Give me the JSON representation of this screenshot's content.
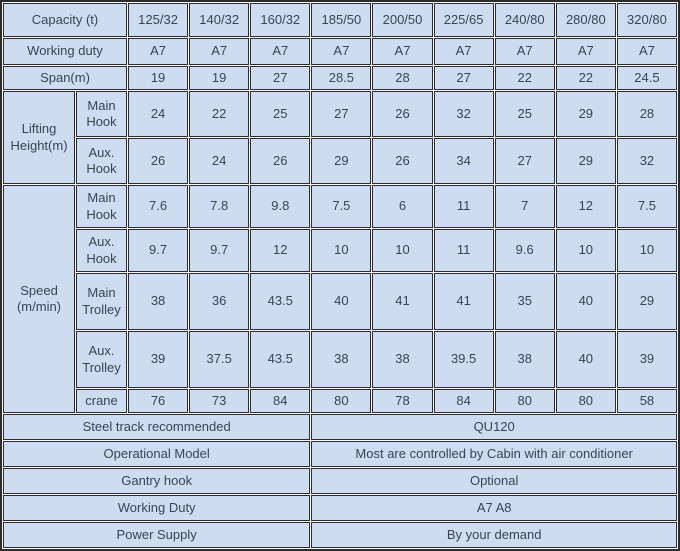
{
  "colors": {
    "cell_background": "#cddcf1",
    "border": "#2d2d2d",
    "text": "#3a4452",
    "cell_gap": "#f7f9fd"
  },
  "table": {
    "capacity": {
      "label": "Capacity (t)",
      "values": [
        "125/32",
        "140/32",
        "160/32",
        "185/50",
        "200/50",
        "225/65",
        "240/80",
        "280/80",
        "320/80"
      ]
    },
    "working_duty": {
      "label": "Working duty",
      "values": [
        "A7",
        "A7",
        "A7",
        "A7",
        "A7",
        "A7",
        "A7",
        "A7",
        "A7"
      ]
    },
    "span": {
      "label": "Span(m)",
      "values": [
        "19",
        "19",
        "27",
        "28.5",
        "28",
        "27",
        "22",
        "22",
        "24.5"
      ]
    },
    "lifting_height": {
      "label": "Lifting Height(m)",
      "main_hook": {
        "label": "Main Hook",
        "values": [
          "24",
          "22",
          "25",
          "27",
          "26",
          "32",
          "25",
          "29",
          "28"
        ]
      },
      "aux_hook": {
        "label": "Aux. Hook",
        "values": [
          "26",
          "24",
          "26",
          "29",
          "26",
          "34",
          "27",
          "29",
          "32"
        ]
      }
    },
    "speed": {
      "label": "Speed (m/min)",
      "main_hook": {
        "label": "Main Hook",
        "values": [
          "7.6",
          "7.8",
          "9.8",
          "7.5",
          "6",
          "11",
          "7",
          "12",
          "7.5"
        ]
      },
      "aux_hook": {
        "label": "Aux. Hook",
        "values": [
          "9.7",
          "9.7",
          "12",
          "10",
          "10",
          "11",
          "9.6",
          "10",
          "10"
        ]
      },
      "main_trolley": {
        "label": "Main Trolley",
        "values": [
          "38",
          "36",
          "43.5",
          "40",
          "41",
          "41",
          "35",
          "40",
          "29"
        ]
      },
      "aux_trolley": {
        "label": "Aux. Trolley",
        "values": [
          "39",
          "37.5",
          "43.5",
          "38",
          "38",
          "39.5",
          "38",
          "40",
          "39"
        ]
      },
      "crane": {
        "label": "crane",
        "values": [
          "76",
          "73",
          "84",
          "80",
          "78",
          "84",
          "80",
          "80",
          "58"
        ]
      }
    },
    "footer_rows": [
      {
        "label": "Steel track recommended",
        "value": "QU120"
      },
      {
        "label": "Operational Model",
        "value": "Most are controlled by Cabin with air conditioner"
      },
      {
        "label": "Gantry hook",
        "value": "Optional"
      },
      {
        "label": "Working Duty",
        "value": "A7 A8"
      },
      {
        "label": "Power Supply",
        "value": "By your demand"
      }
    ]
  }
}
